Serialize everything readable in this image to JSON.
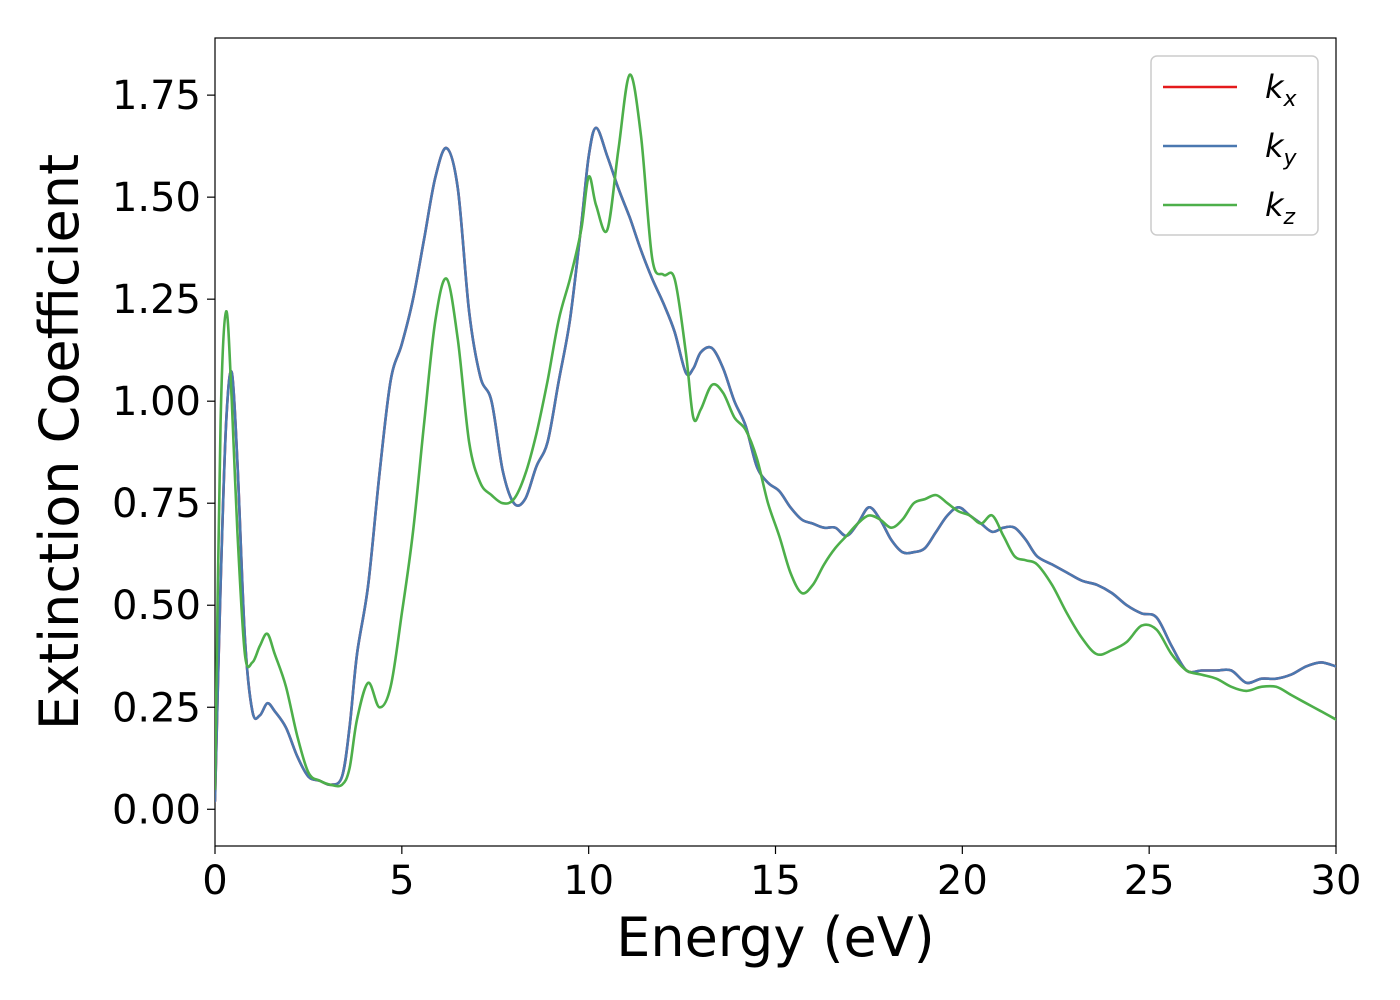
{
  "chart_data": {
    "type": "line",
    "title": "",
    "xlabel": "Energy (eV)",
    "ylabel": "Extinction Coefficient",
    "xlim": [
      0,
      30
    ],
    "ylim": [
      -0.09,
      1.89
    ],
    "xticks": [
      0,
      5,
      10,
      15,
      20,
      25,
      30
    ],
    "xtick_labels": [
      "0",
      "5",
      "10",
      "15",
      "20",
      "25",
      "30"
    ],
    "yticks": [
      0,
      0.25,
      0.5,
      0.75,
      1.0,
      1.25,
      1.5,
      1.75
    ],
    "ytick_labels": [
      "0.00",
      "0.25",
      "0.50",
      "0.75",
      "1.00",
      "1.25",
      "1.50",
      "1.75"
    ],
    "grid": false,
    "legend_position": "top-right",
    "series": [
      {
        "name": "k",
        "subscript": "x",
        "color": "#e41a1c",
        "x": [
          0,
          0.15,
          0.3,
          0.45,
          0.6,
          0.8,
          1.0,
          1.2,
          1.4,
          1.6,
          1.9,
          2.2,
          2.5,
          2.8,
          3.1,
          3.4,
          3.6,
          3.8,
          4.1,
          4.4,
          4.7,
          5.0,
          5.3,
          5.6,
          5.9,
          6.2,
          6.5,
          6.8,
          7.1,
          7.4,
          7.7,
          8.0,
          8.3,
          8.6,
          8.9,
          9.2,
          9.5,
          9.8,
          10.0,
          10.2,
          10.5,
          10.8,
          11.1,
          11.4,
          11.7,
          12.0,
          12.3,
          12.6,
          12.8,
          13.0,
          13.3,
          13.6,
          13.9,
          14.2,
          14.5,
          14.8,
          15.1,
          15.4,
          15.7,
          16.0,
          16.3,
          16.6,
          16.9,
          17.2,
          17.5,
          17.8,
          18.1,
          18.4,
          18.7,
          19.0,
          19.3,
          19.6,
          19.9,
          20.2,
          20.5,
          20.8,
          21.1,
          21.4,
          21.7,
          22.0,
          22.4,
          22.8,
          23.2,
          23.6,
          24.0,
          24.4,
          24.8,
          25.2,
          25.6,
          26.0,
          26.4,
          26.8,
          27.2,
          27.6,
          28.0,
          28.4,
          28.8,
          29.2,
          29.6,
          30.0
        ],
        "y": [
          0.02,
          0.55,
          0.95,
          1.07,
          0.85,
          0.42,
          0.24,
          0.23,
          0.26,
          0.24,
          0.2,
          0.13,
          0.08,
          0.07,
          0.06,
          0.08,
          0.2,
          0.38,
          0.55,
          0.82,
          1.05,
          1.14,
          1.25,
          1.4,
          1.55,
          1.62,
          1.52,
          1.22,
          1.06,
          1.0,
          0.83,
          0.75,
          0.76,
          0.84,
          0.9,
          1.05,
          1.2,
          1.43,
          1.6,
          1.67,
          1.6,
          1.52,
          1.45,
          1.37,
          1.3,
          1.24,
          1.17,
          1.07,
          1.08,
          1.12,
          1.13,
          1.08,
          1.0,
          0.94,
          0.84,
          0.8,
          0.78,
          0.74,
          0.71,
          0.7,
          0.69,
          0.69,
          0.67,
          0.7,
          0.74,
          0.71,
          0.66,
          0.63,
          0.63,
          0.64,
          0.68,
          0.72,
          0.74,
          0.72,
          0.7,
          0.68,
          0.69,
          0.69,
          0.66,
          0.62,
          0.6,
          0.58,
          0.56,
          0.55,
          0.53,
          0.5,
          0.48,
          0.47,
          0.4,
          0.34,
          0.34,
          0.34,
          0.34,
          0.31,
          0.32,
          0.32,
          0.33,
          0.35,
          0.36,
          0.35
        ]
      },
      {
        "name": "k",
        "subscript": "y",
        "color": "#4a78b0",
        "x": [
          0,
          0.15,
          0.3,
          0.45,
          0.6,
          0.8,
          1.0,
          1.2,
          1.4,
          1.6,
          1.9,
          2.2,
          2.5,
          2.8,
          3.1,
          3.4,
          3.6,
          3.8,
          4.1,
          4.4,
          4.7,
          5.0,
          5.3,
          5.6,
          5.9,
          6.2,
          6.5,
          6.8,
          7.1,
          7.4,
          7.7,
          8.0,
          8.3,
          8.6,
          8.9,
          9.2,
          9.5,
          9.8,
          10.0,
          10.2,
          10.5,
          10.8,
          11.1,
          11.4,
          11.7,
          12.0,
          12.3,
          12.6,
          12.8,
          13.0,
          13.3,
          13.6,
          13.9,
          14.2,
          14.5,
          14.8,
          15.1,
          15.4,
          15.7,
          16.0,
          16.3,
          16.6,
          16.9,
          17.2,
          17.5,
          17.8,
          18.1,
          18.4,
          18.7,
          19.0,
          19.3,
          19.6,
          19.9,
          20.2,
          20.5,
          20.8,
          21.1,
          21.4,
          21.7,
          22.0,
          22.4,
          22.8,
          23.2,
          23.6,
          24.0,
          24.4,
          24.8,
          25.2,
          25.6,
          26.0,
          26.4,
          26.8,
          27.2,
          27.6,
          28.0,
          28.4,
          28.8,
          29.2,
          29.6,
          30.0
        ],
        "y": [
          0.02,
          0.55,
          0.95,
          1.07,
          0.85,
          0.42,
          0.24,
          0.23,
          0.26,
          0.24,
          0.2,
          0.13,
          0.08,
          0.07,
          0.06,
          0.08,
          0.2,
          0.38,
          0.55,
          0.82,
          1.05,
          1.14,
          1.25,
          1.4,
          1.55,
          1.62,
          1.52,
          1.22,
          1.06,
          1.0,
          0.83,
          0.75,
          0.76,
          0.84,
          0.9,
          1.05,
          1.2,
          1.43,
          1.6,
          1.67,
          1.6,
          1.52,
          1.45,
          1.37,
          1.3,
          1.24,
          1.17,
          1.07,
          1.08,
          1.12,
          1.13,
          1.08,
          1.0,
          0.94,
          0.84,
          0.8,
          0.78,
          0.74,
          0.71,
          0.7,
          0.69,
          0.69,
          0.67,
          0.7,
          0.74,
          0.71,
          0.66,
          0.63,
          0.63,
          0.64,
          0.68,
          0.72,
          0.74,
          0.72,
          0.7,
          0.68,
          0.69,
          0.69,
          0.66,
          0.62,
          0.6,
          0.58,
          0.56,
          0.55,
          0.53,
          0.5,
          0.48,
          0.47,
          0.4,
          0.34,
          0.34,
          0.34,
          0.34,
          0.31,
          0.32,
          0.32,
          0.33,
          0.35,
          0.36,
          0.35
        ]
      },
      {
        "name": "k",
        "subscript": "z",
        "color": "#4daf4a",
        "x": [
          0,
          0.15,
          0.3,
          0.45,
          0.6,
          0.8,
          1.0,
          1.2,
          1.4,
          1.6,
          1.9,
          2.2,
          2.5,
          2.8,
          3.1,
          3.4,
          3.6,
          3.8,
          4.1,
          4.4,
          4.7,
          5.0,
          5.3,
          5.6,
          5.9,
          6.2,
          6.5,
          6.8,
          7.1,
          7.4,
          7.7,
          8.0,
          8.3,
          8.6,
          8.9,
          9.2,
          9.5,
          9.8,
          10.0,
          10.2,
          10.5,
          10.8,
          11.1,
          11.4,
          11.7,
          12.0,
          12.3,
          12.6,
          12.8,
          13.0,
          13.3,
          13.6,
          13.9,
          14.2,
          14.5,
          14.8,
          15.1,
          15.4,
          15.7,
          16.0,
          16.3,
          16.6,
          16.9,
          17.2,
          17.5,
          17.8,
          18.1,
          18.4,
          18.7,
          19.0,
          19.3,
          19.6,
          19.9,
          20.2,
          20.5,
          20.8,
          21.1,
          21.4,
          21.7,
          22.0,
          22.4,
          22.8,
          23.2,
          23.6,
          24.0,
          24.4,
          24.8,
          25.2,
          25.6,
          26.0,
          26.4,
          26.8,
          27.2,
          27.6,
          28.0,
          28.4,
          28.8,
          29.2,
          29.6,
          30.0
        ],
        "y": [
          0.05,
          0.95,
          1.22,
          1.0,
          0.68,
          0.38,
          0.36,
          0.4,
          0.43,
          0.38,
          0.3,
          0.18,
          0.09,
          0.07,
          0.06,
          0.06,
          0.1,
          0.22,
          0.31,
          0.25,
          0.3,
          0.48,
          0.68,
          0.95,
          1.2,
          1.3,
          1.15,
          0.9,
          0.8,
          0.77,
          0.75,
          0.76,
          0.82,
          0.92,
          1.05,
          1.2,
          1.3,
          1.42,
          1.55,
          1.48,
          1.42,
          1.62,
          1.8,
          1.65,
          1.35,
          1.31,
          1.3,
          1.12,
          0.96,
          0.98,
          1.04,
          1.02,
          0.96,
          0.93,
          0.86,
          0.75,
          0.67,
          0.58,
          0.53,
          0.55,
          0.6,
          0.64,
          0.67,
          0.7,
          0.72,
          0.71,
          0.69,
          0.71,
          0.75,
          0.76,
          0.77,
          0.75,
          0.73,
          0.72,
          0.7,
          0.72,
          0.67,
          0.62,
          0.61,
          0.6,
          0.55,
          0.48,
          0.42,
          0.38,
          0.39,
          0.41,
          0.45,
          0.44,
          0.38,
          0.34,
          0.33,
          0.32,
          0.3,
          0.29,
          0.3,
          0.3,
          0.28,
          0.26,
          0.24,
          0.22
        ]
      }
    ]
  }
}
